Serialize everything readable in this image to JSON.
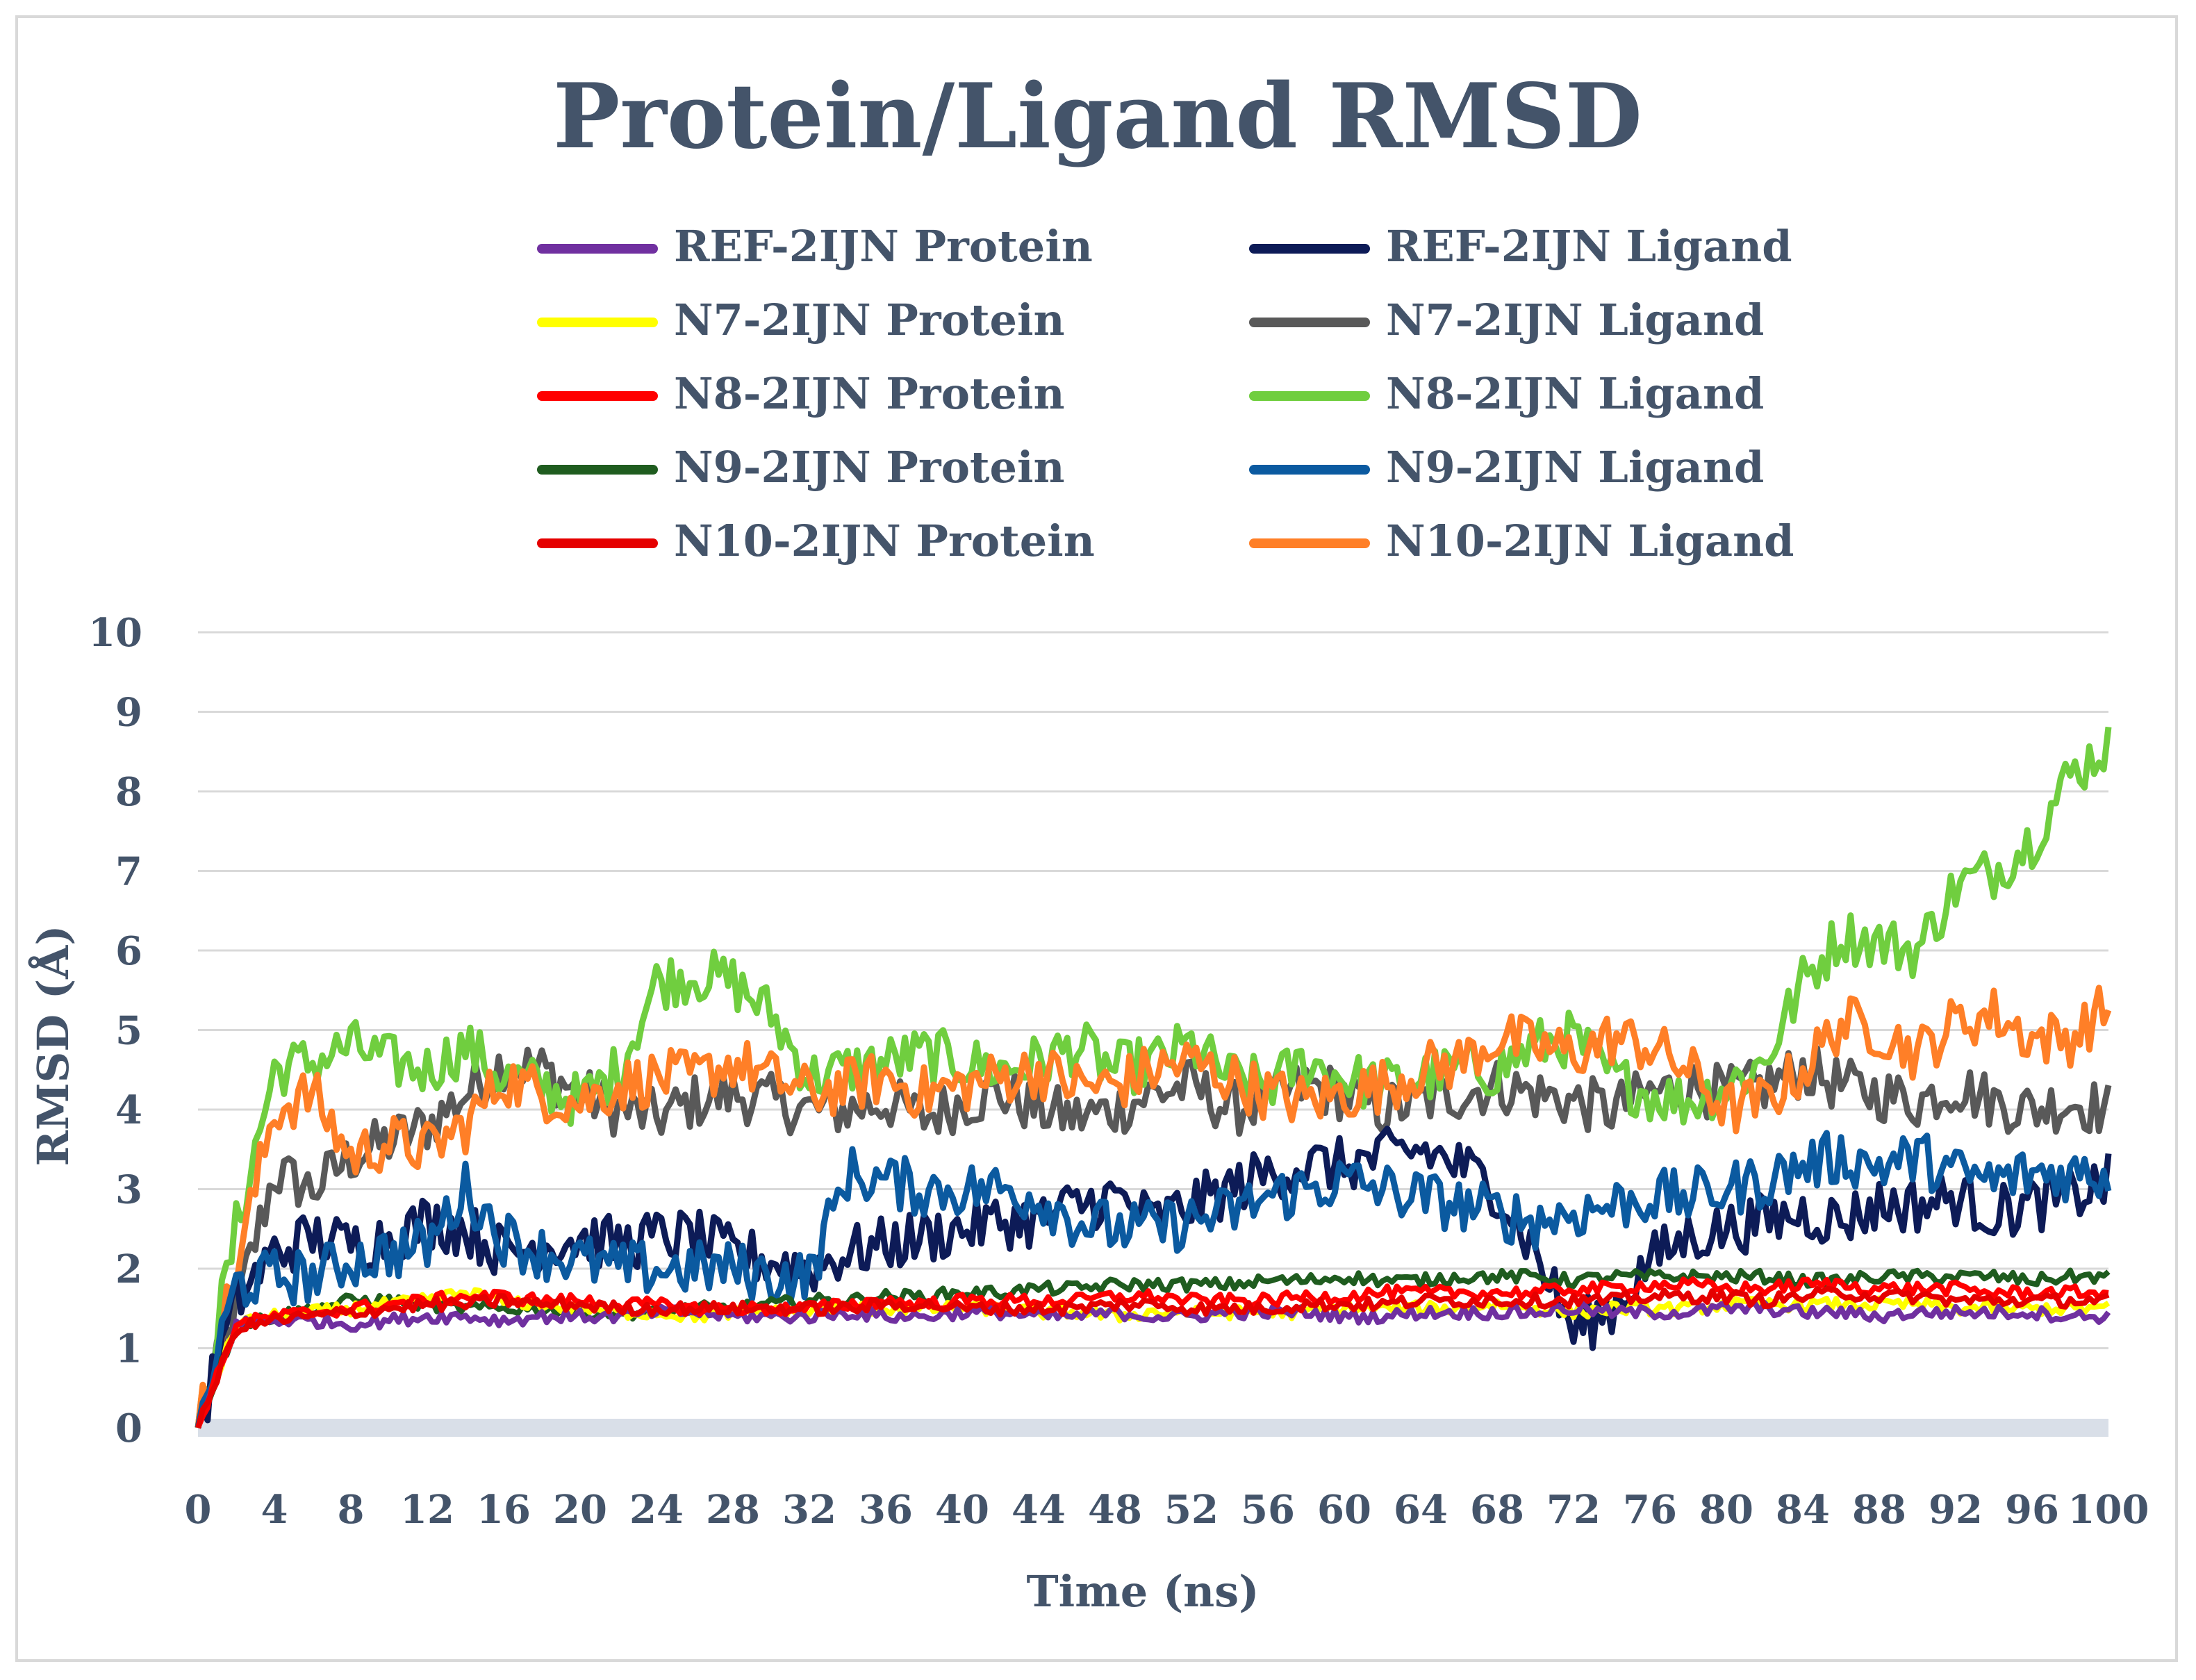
{
  "chart_data": {
    "type": "line",
    "title": "Protein/Ligand RMSD",
    "xlabel": "Time (ns)",
    "ylabel": "RMSD (Å)",
    "xlim": [
      0,
      100
    ],
    "ylim": [
      0,
      10
    ],
    "grid": true,
    "legend_position": "top",
    "x_ticks": [
      "0",
      "4",
      "8",
      "12",
      "16",
      "20",
      "24",
      "28",
      "32",
      "36",
      "40",
      "44",
      "48",
      "52",
      "56",
      "60",
      "64",
      "68",
      "72",
      "76",
      "80",
      "84",
      "88",
      "92",
      "96",
      "100"
    ],
    "y_ticks": [
      "0",
      "1",
      "2",
      "3",
      "4",
      "5",
      "6",
      "7",
      "8",
      "9",
      "10"
    ],
    "x": [
      0,
      2,
      4,
      6,
      8,
      10,
      12,
      14,
      16,
      18,
      20,
      22,
      24,
      26,
      28,
      30,
      32,
      34,
      36,
      38,
      40,
      42,
      44,
      46,
      48,
      50,
      52,
      54,
      56,
      58,
      60,
      62,
      64,
      66,
      68,
      70,
      72,
      74,
      76,
      78,
      80,
      82,
      84,
      86,
      88,
      90,
      92,
      94,
      96,
      98,
      100
    ],
    "series": [
      {
        "name": "REF-2IJN Protein",
        "color": "#7030a0",
        "values": [
          0,
          1.3,
          1.35,
          1.35,
          1.3,
          1.35,
          1.4,
          1.4,
          1.35,
          1.4,
          1.4,
          1.4,
          1.45,
          1.45,
          1.4,
          1.4,
          1.4,
          1.45,
          1.4,
          1.4,
          1.45,
          1.45,
          1.4,
          1.4,
          1.45,
          1.4,
          1.4,
          1.45,
          1.45,
          1.45,
          1.4,
          1.4,
          1.45,
          1.45,
          1.45,
          1.45,
          1.5,
          1.45,
          1.45,
          1.45,
          1.5,
          1.5,
          1.45,
          1.45,
          1.4,
          1.45,
          1.45,
          1.45,
          1.45,
          1.4,
          1.4
        ]
      },
      {
        "name": "REF-2IJN Ligand",
        "color": "#0d1b57",
        "values": [
          0,
          1.6,
          2.2,
          2.4,
          2.3,
          2.4,
          2.6,
          2.5,
          2.2,
          2.3,
          2.4,
          2.3,
          2.4,
          2.4,
          2.2,
          2.1,
          2,
          2.2,
          2.3,
          2.4,
          2.5,
          2.6,
          2.6,
          2.8,
          2.9,
          2.6,
          2.8,
          3,
          3.2,
          3.3,
          3.3,
          3.4,
          3.5,
          3.3,
          3,
          2.2,
          1.2,
          1.5,
          2.1,
          2.4,
          2.5,
          2.6,
          2.7,
          2.6,
          2.8,
          2.8,
          2.9,
          2.7,
          2.8,
          2.9,
          3.1
        ]
      },
      {
        "name": "N7-2IJN Protein",
        "color": "#ffff00",
        "values": [
          0,
          1.3,
          1.4,
          1.45,
          1.5,
          1.55,
          1.6,
          1.7,
          1.6,
          1.55,
          1.5,
          1.45,
          1.45,
          1.4,
          1.45,
          1.45,
          1.45,
          1.5,
          1.5,
          1.5,
          1.5,
          1.5,
          1.45,
          1.45,
          1.4,
          1.45,
          1.45,
          1.45,
          1.45,
          1.45,
          1.5,
          1.5,
          1.5,
          1.5,
          1.55,
          1.5,
          1.45,
          1.5,
          1.5,
          1.5,
          1.55,
          1.55,
          1.55,
          1.55,
          1.55,
          1.55,
          1.5,
          1.5,
          1.5,
          1.5,
          1.5
        ]
      },
      {
        "name": "N7-2IJN Ligand",
        "color": "#595959",
        "values": [
          0,
          1.5,
          3.2,
          3,
          3.4,
          3.6,
          3.8,
          4.2,
          4.6,
          4.5,
          4.2,
          4,
          3.9,
          4.1,
          4.2,
          4.1,
          4,
          4,
          4.1,
          3.9,
          4.1,
          4.2,
          4,
          3.9,
          4,
          4.2,
          4.3,
          4,
          4.1,
          4.3,
          4.2,
          4,
          4.1,
          4.2,
          4.3,
          4.2,
          4.1,
          4,
          4.2,
          4.3,
          4.2,
          4.3,
          4.5,
          4.3,
          4.2,
          4.1,
          4.3,
          4.1,
          4,
          4.1,
          4
        ]
      },
      {
        "name": "N8-2IJN Protein",
        "color": "#ff0000",
        "values": [
          0,
          1.3,
          1.4,
          1.45,
          1.5,
          1.55,
          1.6,
          1.65,
          1.65,
          1.6,
          1.6,
          1.55,
          1.55,
          1.5,
          1.5,
          1.5,
          1.5,
          1.55,
          1.6,
          1.55,
          1.6,
          1.6,
          1.6,
          1.6,
          1.65,
          1.65,
          1.6,
          1.6,
          1.6,
          1.65,
          1.65,
          1.7,
          1.7,
          1.7,
          1.7,
          1.7,
          1.75,
          1.75,
          1.8,
          1.8,
          1.75,
          1.75,
          1.8,
          1.8,
          1.75,
          1.75,
          1.75,
          1.7,
          1.7,
          1.7,
          1.7
        ]
      },
      {
        "name": "N8-2IJN Ligand",
        "color": "#70ce3f",
        "values": [
          0,
          2.5,
          4.5,
          4.6,
          4.8,
          4.6,
          4.5,
          4.8,
          4.4,
          4.3,
          4.1,
          4.5,
          5.6,
          5.7,
          5.6,
          5.2,
          4.4,
          4.5,
          4.6,
          4.7,
          4.6,
          4.5,
          4.6,
          4.8,
          4.5,
          4.6,
          4.8,
          4.4,
          4.3,
          4.6,
          4.4,
          4.3,
          4.4,
          4.5,
          4.5,
          4.8,
          4.9,
          4.4,
          4.2,
          4.1,
          4.3,
          4.6,
          5.6,
          6.2,
          6.1,
          6.0,
          6.8,
          7.0,
          7.4,
          8.2,
          8.6
        ]
      },
      {
        "name": "N9-2IJN Protein",
        "color": "#1f5c1f",
        "values": [
          0,
          1.3,
          1.4,
          1.5,
          1.6,
          1.6,
          1.55,
          1.5,
          1.5,
          1.5,
          1.45,
          1.45,
          1.45,
          1.5,
          1.5,
          1.55,
          1.6,
          1.6,
          1.65,
          1.65,
          1.7,
          1.7,
          1.75,
          1.75,
          1.8,
          1.8,
          1.8,
          1.8,
          1.85,
          1.85,
          1.9,
          1.85,
          1.85,
          1.9,
          1.9,
          1.9,
          1.85,
          1.9,
          1.9,
          1.9,
          1.9,
          1.9,
          1.85,
          1.85,
          1.9,
          1.9,
          1.9,
          1.9,
          1.85,
          1.9,
          1.9
        ]
      },
      {
        "name": "N9-2IJN Ligand",
        "color": "#0b5aa0",
        "values": [
          0,
          1.8,
          1.9,
          1.9,
          2.1,
          2.2,
          2.3,
          3,
          2.4,
          2.2,
          2.1,
          2,
          2,
          2,
          2,
          1.9,
          1.9,
          3.2,
          3.1,
          3,
          3,
          3,
          2.9,
          2.6,
          2.5,
          2.5,
          2.6,
          2.7,
          2.9,
          3,
          3.1,
          3,
          2.9,
          2.8,
          2.7,
          2.6,
          2.7,
          2.8,
          2.9,
          2.9,
          3,
          3.1,
          3.3,
          3.4,
          3.3,
          3.4,
          3.2,
          3.1,
          3.2,
          3.2,
          3.2
        ]
      },
      {
        "name": "N10-2IJN Protein",
        "color": "#e50000",
        "values": [
          0,
          1.25,
          1.35,
          1.4,
          1.45,
          1.5,
          1.55,
          1.55,
          1.6,
          1.55,
          1.55,
          1.5,
          1.5,
          1.5,
          1.5,
          1.5,
          1.5,
          1.5,
          1.55,
          1.55,
          1.5,
          1.5,
          1.5,
          1.5,
          1.55,
          1.55,
          1.5,
          1.5,
          1.5,
          1.55,
          1.55,
          1.55,
          1.6,
          1.6,
          1.6,
          1.6,
          1.6,
          1.6,
          1.65,
          1.65,
          1.65,
          1.6,
          1.65,
          1.7,
          1.65,
          1.65,
          1.6,
          1.6,
          1.6,
          1.6,
          1.6
        ]
      },
      {
        "name": "N10-2IJN Ligand",
        "color": "#ff7f27",
        "values": [
          0,
          2,
          4,
          4.2,
          3.4,
          3.6,
          3.5,
          3.8,
          4.4,
          4.2,
          4.1,
          4.3,
          4.4,
          4.4,
          4.6,
          4.4,
          4.2,
          4.3,
          4.4,
          4.2,
          4.3,
          4.4,
          4.5,
          4.3,
          4.3,
          4.5,
          4.6,
          4.4,
          4.2,
          4.1,
          4.2,
          4.3,
          4.5,
          4.6,
          4.9,
          4.8,
          4.7,
          4.9,
          4.8,
          4.5,
          4,
          4.1,
          4.5,
          5.1,
          5,
          4.7,
          5.1,
          5.2,
          4.9,
          4.9,
          5.3
        ]
      }
    ]
  }
}
